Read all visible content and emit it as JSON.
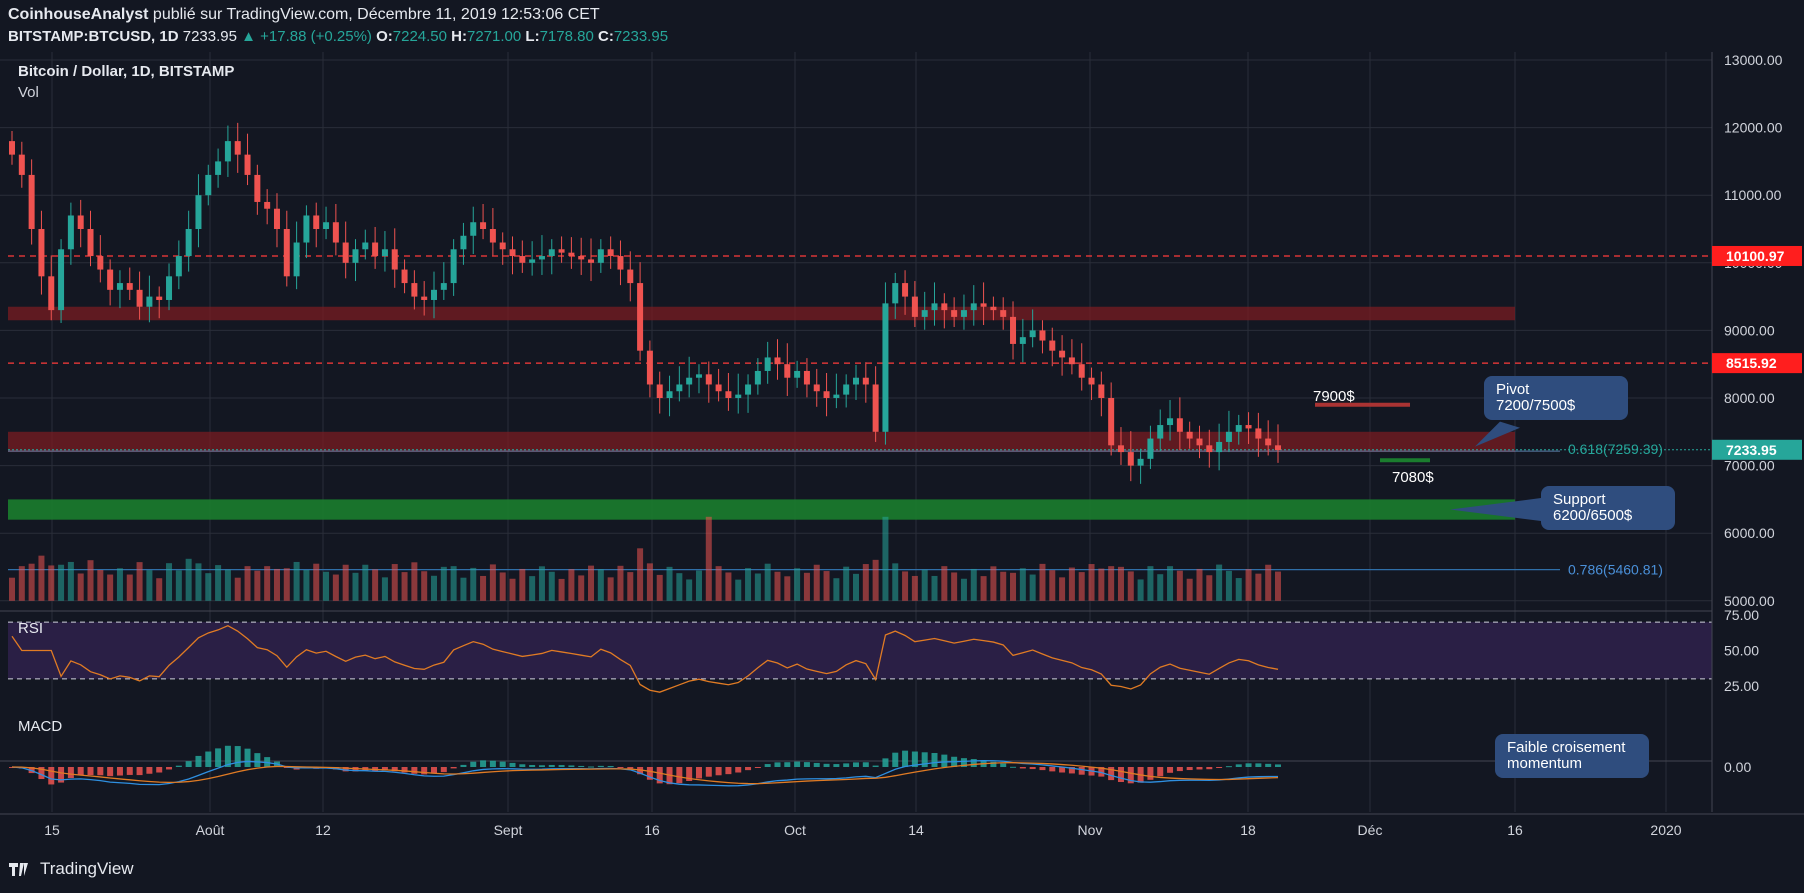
{
  "header": {
    "author": "CoinhouseAnalyst",
    "published": "publié sur TradingView.com, Décembre 11, 2019 12:53:06 CET",
    "symbol": "BITSTAMP:BTCUSD, 1D",
    "last": "7233.95",
    "change": "+17.88 (+0.25%)",
    "o_label": "O:",
    "o": "7224.50",
    "h_label": "H:",
    "h": "7271.00",
    "l_label": "L:",
    "l": "7178.80",
    "c_label": "C:",
    "c": "7233.95"
  },
  "pane_labels": {
    "main": "Bitcoin / Dollar, 1D, BITSTAMP",
    "vol": "Vol",
    "rsi": "RSI",
    "macd": "MACD"
  },
  "annotations": {
    "level_7900": "7900$",
    "level_7080": "7080$",
    "pivot": "Pivot\n7200/7500$",
    "support": "Support\n6200/6500$",
    "macd_note": "Faible croisement\nmomentum",
    "fib_0618": "0.618(7259.39)",
    "fib_0786": "0.786(5460.81)"
  },
  "footer": {
    "brand": "TradingView"
  },
  "colors": {
    "up": "#26a69a",
    "down": "#ef5350",
    "bg": "#131722",
    "grid": "#2a2e39",
    "red_zone": "#7a1c22",
    "green_zone": "#1b7d2e",
    "rsi": "#e07b24",
    "macd": "#2e8fe0",
    "signal": "#e07b24",
    "callout": "#2f4d7e"
  },
  "chart_data": {
    "type": "candlestick",
    "y_axis_ticks": [
      "13000.00",
      "12000.00",
      "11000.00",
      "10000.00",
      "9000.00",
      "8000.00",
      "7000.00",
      "6000.00",
      "5000.00"
    ],
    "ylim": [
      5000,
      13000
    ],
    "x_axis_ticks": [
      "15",
      "Août",
      "12",
      "Sept",
      "16",
      "Oct",
      "14",
      "Nov",
      "18",
      "Déc",
      "16",
      "2020"
    ],
    "price_flags": [
      {
        "value": "10100.97",
        "color": "#ff1e1e"
      },
      {
        "value": "8515.92",
        "color": "#ff1e1e"
      },
      {
        "value": "7233.95",
        "color": "#26a69a"
      }
    ],
    "horizontal_levels": [
      10100.97,
      8515.92,
      7233.95,
      7259.39,
      5460.81
    ],
    "zones": [
      {
        "from": 9150,
        "to": 9350,
        "kind": "resistance"
      },
      {
        "from": 7200,
        "to": 7500,
        "kind": "pivot"
      },
      {
        "from": 6200,
        "to": 6500,
        "kind": "support"
      }
    ],
    "closes": [
      11600,
      11300,
      10500,
      9800,
      9300,
      10200,
      10700,
      10500,
      10100,
      9900,
      9600,
      9700,
      9600,
      9350,
      9500,
      9450,
      9800,
      10100,
      10500,
      11000,
      11300,
      11500,
      11800,
      11600,
      11300,
      10900,
      10800,
      10500,
      9800,
      10300,
      10700,
      10500,
      10600,
      10300,
      10000,
      10200,
      10300,
      10100,
      10200,
      9900,
      9700,
      9500,
      9450,
      9600,
      9700,
      10200,
      10400,
      10600,
      10500,
      10300,
      10200,
      10100,
      10000,
      10050,
      10100,
      10200,
      10150,
      10100,
      10050,
      10000,
      10200,
      10100,
      9900,
      9700,
      8700,
      8200,
      8000,
      8100,
      8200,
      8300,
      8350,
      8200,
      8100,
      8000,
      8050,
      8200,
      8400,
      8600,
      8500,
      8300,
      8400,
      8200,
      8100,
      8000,
      8050,
      8200,
      8300,
      8200,
      7500,
      9400,
      9700,
      9500,
      9200,
      9300,
      9400,
      9300,
      9200,
      9300,
      9400,
      9350,
      9300,
      9200,
      8800,
      8900,
      9000,
      8850,
      8700,
      8600,
      8500,
      8300,
      8200,
      8000,
      7300,
      7200,
      7000,
      7100,
      7400,
      7600,
      7700,
      7500,
      7400,
      7300,
      7200,
      7350,
      7500,
      7600,
      7550,
      7400,
      7300,
      7230
    ],
    "rsi_ticks": [
      "75.00",
      "50.00",
      "25.00"
    ],
    "rsi_levels": [
      70,
      30
    ],
    "macd_ticks": [
      "0.00"
    ]
  }
}
